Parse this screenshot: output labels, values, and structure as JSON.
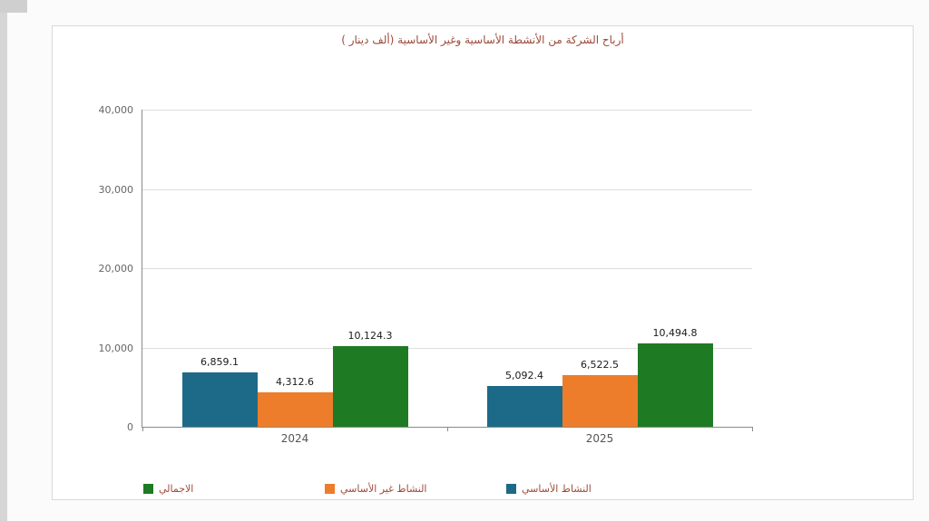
{
  "chart_data": {
    "type": "bar",
    "title": "أرباح الشركة من الأنشطة الأساسية وغير الأساسية (ألف دينار )",
    "title_color": "#9c4a3a",
    "categories": [
      "2024",
      "2025"
    ],
    "series": [
      {
        "name": "النشاط الأساسي",
        "color": "#1d6a88",
        "values": [
          6859.1,
          5092.4
        ],
        "labels": [
          "6,859.1",
          "5,092.4"
        ]
      },
      {
        "name": "النشاط غير الأساسي",
        "color": "#ed7d2b",
        "values": [
          4312.6,
          6522.5
        ],
        "labels": [
          "4,312.6",
          "6,522.5"
        ]
      },
      {
        "name": "الاجمالي",
        "color": "#1f7a24",
        "values": [
          10124.3,
          10494.8
        ],
        "labels": [
          "10,124.3",
          "10,494.8"
        ]
      }
    ],
    "ylim": [
      0,
      40000
    ],
    "ytick_labels": [
      "40,000",
      "30,000",
      "20,000",
      "10,000",
      "0"
    ],
    "grid": true,
    "legend_position": "bottom",
    "legend": [
      {
        "label": "الاجمالي",
        "color": "#1f7a24"
      },
      {
        "label": "النشاط غير الأساسي",
        "color": "#ed7d2b"
      },
      {
        "label": "النشاط الأساسي",
        "color": "#1d6a88"
      }
    ]
  }
}
